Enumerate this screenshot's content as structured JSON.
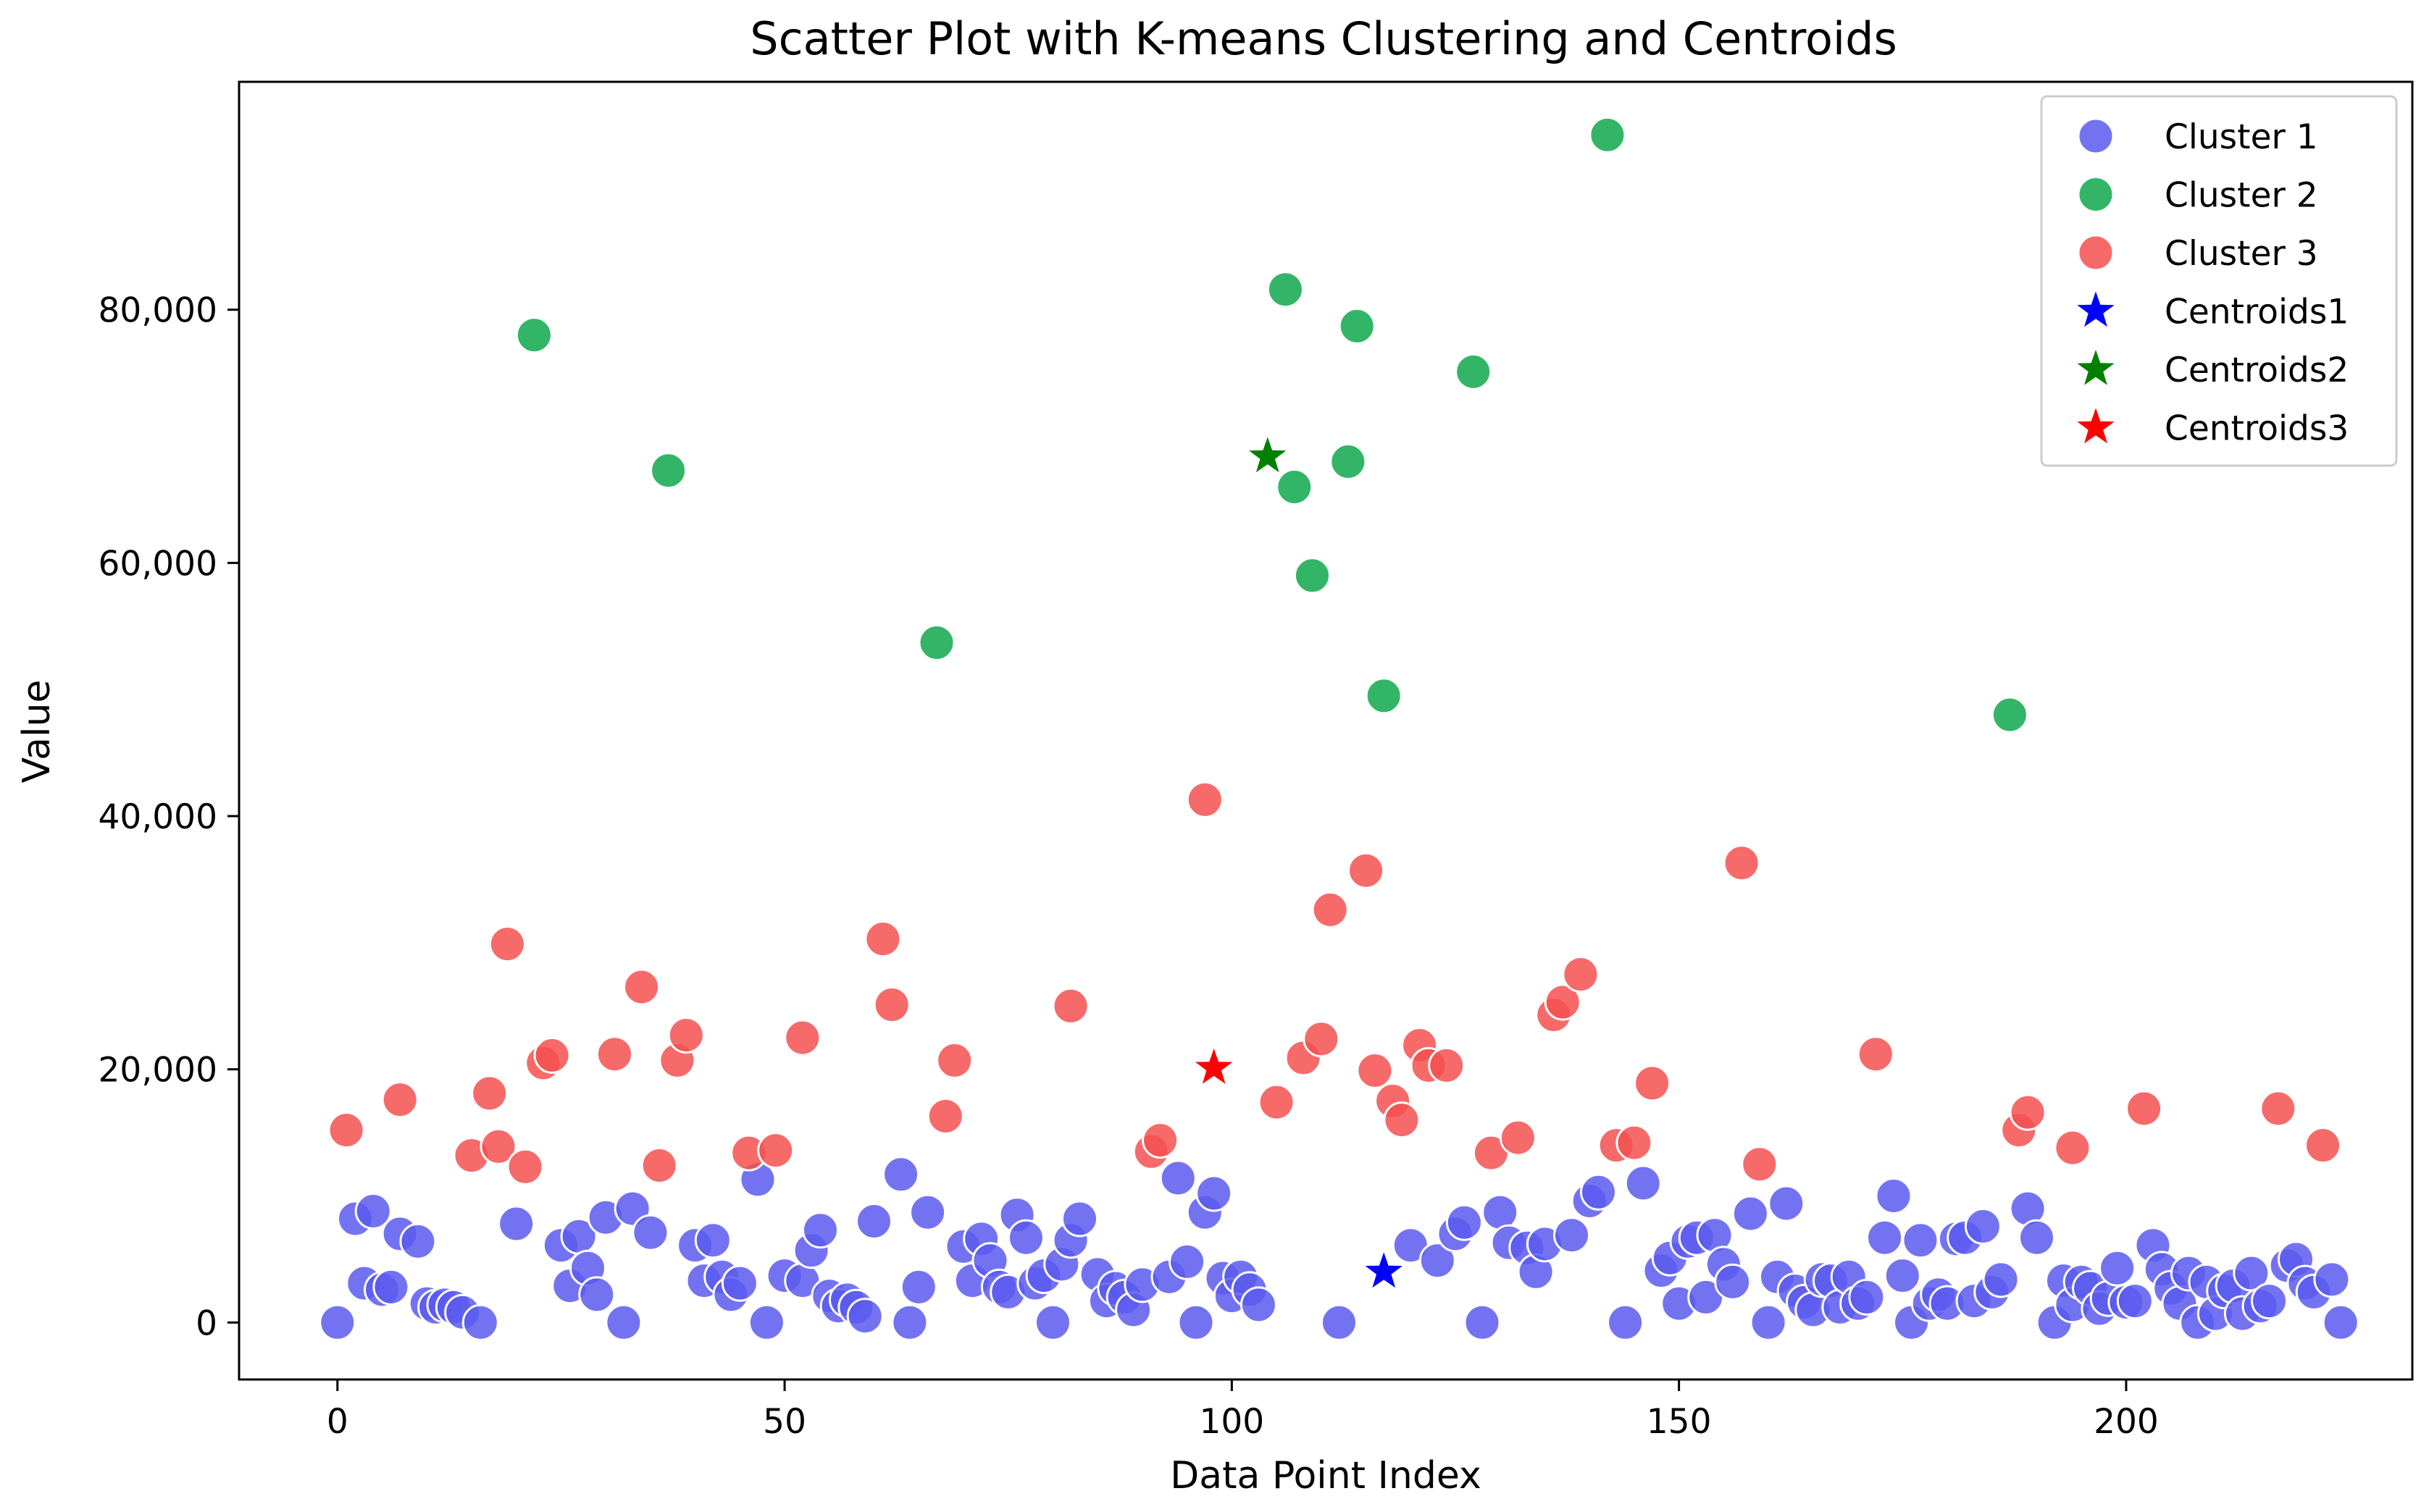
{
  "chart_data": {
    "type": "scatter",
    "title": "Scatter Plot with K-means Clustering and Centroids",
    "xlabel": "Data Point Index",
    "ylabel": "Value",
    "xlim": [
      -11,
      232
    ],
    "ylim": [
      -4500,
      98000
    ],
    "x_ticks": [
      0,
      50,
      100,
      150,
      200
    ],
    "x_tick_labels": [
      "0",
      "50",
      "100",
      "150",
      "200"
    ],
    "y_ticks": [
      0,
      20000,
      40000,
      60000,
      80000
    ],
    "y_tick_labels": [
      "0",
      "20,000",
      "40,000",
      "60,000",
      "80,000"
    ],
    "grid": false,
    "legend_position": "top-right",
    "series": [
      {
        "name": "Cluster 1",
        "color": "#5a5af0",
        "marker": "circle",
        "points": [
          [
            0,
            0
          ],
          [
            2,
            8200
          ],
          [
            3,
            3100
          ],
          [
            4,
            8800
          ],
          [
            5,
            2600
          ],
          [
            6,
            2800
          ],
          [
            7,
            7000
          ],
          [
            9,
            6400
          ],
          [
            10,
            1500
          ],
          [
            11,
            1200
          ],
          [
            12,
            1400
          ],
          [
            13,
            1200
          ],
          [
            14,
            800
          ],
          [
            16,
            0
          ],
          [
            20,
            7800
          ],
          [
            25,
            6100
          ],
          [
            26,
            2900
          ],
          [
            27,
            6800
          ],
          [
            28,
            4300
          ],
          [
            29,
            2200
          ],
          [
            30,
            8300
          ],
          [
            32,
            0
          ],
          [
            33,
            9000
          ],
          [
            35,
            7100
          ],
          [
            40,
            6100
          ],
          [
            41,
            3300
          ],
          [
            42,
            6500
          ],
          [
            43,
            3600
          ],
          [
            44,
            2200
          ],
          [
            45,
            3100
          ],
          [
            47,
            11300
          ],
          [
            48,
            0
          ],
          [
            50,
            3700
          ],
          [
            52,
            3300
          ],
          [
            53,
            5700
          ],
          [
            54,
            7300
          ],
          [
            55,
            2100
          ],
          [
            56,
            1300
          ],
          [
            57,
            1800
          ],
          [
            58,
            1200
          ],
          [
            59,
            500
          ],
          [
            60,
            8000
          ],
          [
            63,
            11700
          ],
          [
            64,
            0
          ],
          [
            65,
            2800
          ],
          [
            66,
            8700
          ],
          [
            70,
            6000
          ],
          [
            71,
            3300
          ],
          [
            72,
            6600
          ],
          [
            73,
            4900
          ],
          [
            74,
            2800
          ],
          [
            75,
            2400
          ],
          [
            76,
            8500
          ],
          [
            77,
            6700
          ],
          [
            78,
            3100
          ],
          [
            79,
            3700
          ],
          [
            80,
            0
          ],
          [
            81,
            4600
          ],
          [
            82,
            6500
          ],
          [
            83,
            8200
          ],
          [
            85,
            3800
          ],
          [
            86,
            1700
          ],
          [
            87,
            2700
          ],
          [
            88,
            2000
          ],
          [
            89,
            1000
          ],
          [
            90,
            3000
          ],
          [
            93,
            3600
          ],
          [
            94,
            11400
          ],
          [
            95,
            4800
          ],
          [
            96,
            0
          ],
          [
            97,
            8700
          ],
          [
            98,
            10200
          ],
          [
            99,
            3500
          ],
          [
            100,
            2100
          ],
          [
            101,
            3600
          ],
          [
            102,
            2600
          ],
          [
            103,
            1400
          ],
          [
            112,
            0
          ],
          [
            120,
            6100
          ],
          [
            123,
            4900
          ],
          [
            125,
            7000
          ],
          [
            126,
            7900
          ],
          [
            128,
            0
          ],
          [
            130,
            8700
          ],
          [
            131,
            6300
          ],
          [
            133,
            5900
          ],
          [
            134,
            4000
          ],
          [
            135,
            6200
          ],
          [
            138,
            6900
          ],
          [
            140,
            9600
          ],
          [
            141,
            10300
          ],
          [
            144,
            0
          ],
          [
            146,
            11000
          ],
          [
            148,
            4100
          ],
          [
            149,
            5100
          ],
          [
            150,
            1500
          ],
          [
            151,
            6400
          ],
          [
            152,
            6700
          ],
          [
            153,
            2000
          ],
          [
            154,
            6900
          ],
          [
            155,
            4600
          ],
          [
            156,
            3200
          ],
          [
            158,
            8600
          ],
          [
            160,
            0
          ],
          [
            161,
            3600
          ],
          [
            162,
            9400
          ],
          [
            163,
            2500
          ],
          [
            164,
            1600
          ],
          [
            165,
            1000
          ],
          [
            166,
            3400
          ],
          [
            167,
            3300
          ],
          [
            168,
            1200
          ],
          [
            169,
            3600
          ],
          [
            170,
            1500
          ],
          [
            171,
            2000
          ],
          [
            173,
            6700
          ],
          [
            174,
            10000
          ],
          [
            175,
            3700
          ],
          [
            176,
            0
          ],
          [
            177,
            6500
          ],
          [
            178,
            1500
          ],
          [
            179,
            2200
          ],
          [
            180,
            1500
          ],
          [
            181,
            6600
          ],
          [
            182,
            6700
          ],
          [
            183,
            1700
          ],
          [
            184,
            7600
          ],
          [
            185,
            2400
          ],
          [
            186,
            3400
          ],
          [
            189,
            9000
          ],
          [
            190,
            6700
          ],
          [
            192,
            0
          ],
          [
            193,
            3300
          ],
          [
            194,
            1400
          ],
          [
            195,
            3200
          ],
          [
            196,
            2700
          ],
          [
            197,
            1100
          ],
          [
            198,
            1900
          ],
          [
            199,
            4300
          ],
          [
            200,
            1600
          ],
          [
            201,
            1700
          ],
          [
            203,
            6100
          ],
          [
            204,
            4200
          ],
          [
            205,
            2700
          ],
          [
            206,
            1500
          ],
          [
            207,
            3900
          ],
          [
            208,
            0
          ],
          [
            209,
            3200
          ],
          [
            210,
            700
          ],
          [
            211,
            2500
          ],
          [
            212,
            2900
          ],
          [
            213,
            700
          ],
          [
            214,
            3900
          ],
          [
            215,
            1300
          ],
          [
            216,
            1700
          ],
          [
            218,
            4500
          ],
          [
            219,
            5000
          ],
          [
            220,
            3100
          ],
          [
            221,
            2400
          ],
          [
            223,
            3400
          ],
          [
            224,
            0
          ]
        ]
      },
      {
        "name": "Cluster 2",
        "color": "#0fa84e",
        "marker": "circle",
        "points": [
          [
            22,
            78000
          ],
          [
            37,
            67300
          ],
          [
            67,
            53700
          ],
          [
            106,
            81600
          ],
          [
            107,
            66000
          ],
          [
            109,
            59000
          ],
          [
            113,
            68000
          ],
          [
            114,
            78700
          ],
          [
            117,
            49500
          ],
          [
            127,
            75100
          ],
          [
            142,
            93800
          ],
          [
            187,
            48000
          ]
        ]
      },
      {
        "name": "Cluster 3",
        "color": "#f55050",
        "marker": "circle",
        "points": [
          [
            1,
            15200
          ],
          [
            7,
            17600
          ],
          [
            15,
            13200
          ],
          [
            17,
            18100
          ],
          [
            18,
            13900
          ],
          [
            19,
            29900
          ],
          [
            21,
            12300
          ],
          [
            23,
            20500
          ],
          [
            24,
            21100
          ],
          [
            31,
            21200
          ],
          [
            34,
            26500
          ],
          [
            36,
            12400
          ],
          [
            38,
            20700
          ],
          [
            39,
            22700
          ],
          [
            46,
            13400
          ],
          [
            49,
            13600
          ],
          [
            52,
            22500
          ],
          [
            61,
            30300
          ],
          [
            62,
            25100
          ],
          [
            68,
            16300
          ],
          [
            69,
            20700
          ],
          [
            82,
            25000
          ],
          [
            91,
            13500
          ],
          [
            92,
            14400
          ],
          [
            97,
            41300
          ],
          [
            105,
            17400
          ],
          [
            108,
            20900
          ],
          [
            110,
            22400
          ],
          [
            111,
            32600
          ],
          [
            115,
            35700
          ],
          [
            116,
            19900
          ],
          [
            118,
            17500
          ],
          [
            119,
            16000
          ],
          [
            121,
            21900
          ],
          [
            122,
            20300
          ],
          [
            124,
            20300
          ],
          [
            129,
            13400
          ],
          [
            132,
            14600
          ],
          [
            136,
            24300
          ],
          [
            137,
            25300
          ],
          [
            139,
            27500
          ],
          [
            143,
            14000
          ],
          [
            145,
            14200
          ],
          [
            147,
            18900
          ],
          [
            157,
            36300
          ],
          [
            159,
            12500
          ],
          [
            172,
            21200
          ],
          [
            188,
            15200
          ],
          [
            189,
            16600
          ],
          [
            194,
            13800
          ],
          [
            202,
            16900
          ],
          [
            217,
            16900
          ],
          [
            222,
            14000
          ]
        ]
      }
    ],
    "centroids": [
      {
        "name": "Centroids1",
        "color": "#0000ff",
        "marker": "star",
        "x": 117,
        "y": 4000
      },
      {
        "name": "Centroids2",
        "color": "#008000",
        "marker": "star",
        "x": 104,
        "y": 68400
      },
      {
        "name": "Centroids3",
        "color": "#ff0000",
        "marker": "star",
        "x": 98,
        "y": 20100
      }
    ]
  }
}
